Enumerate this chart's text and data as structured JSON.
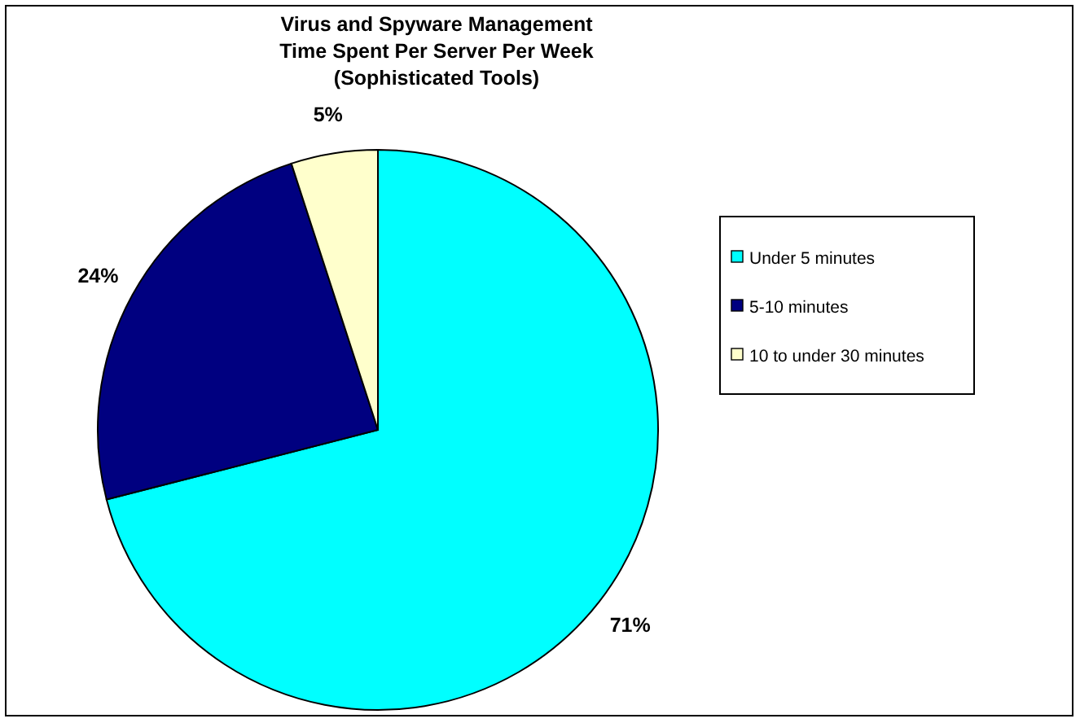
{
  "chart_data": {
    "type": "pie",
    "title": "Virus and Spyware Management\nTime Spent Per Server Per Week\n(Sophisticated Tools)",
    "categories": [
      "Under 5 minutes",
      "5-10 minutes",
      "10 to under 30 minutes"
    ],
    "values": [
      71,
      24,
      5
    ],
    "colors": [
      "#00ffff",
      "#000080",
      "#ffffcc"
    ],
    "value_labels": [
      "71%",
      "24%",
      "5%"
    ],
    "legend": "right"
  }
}
